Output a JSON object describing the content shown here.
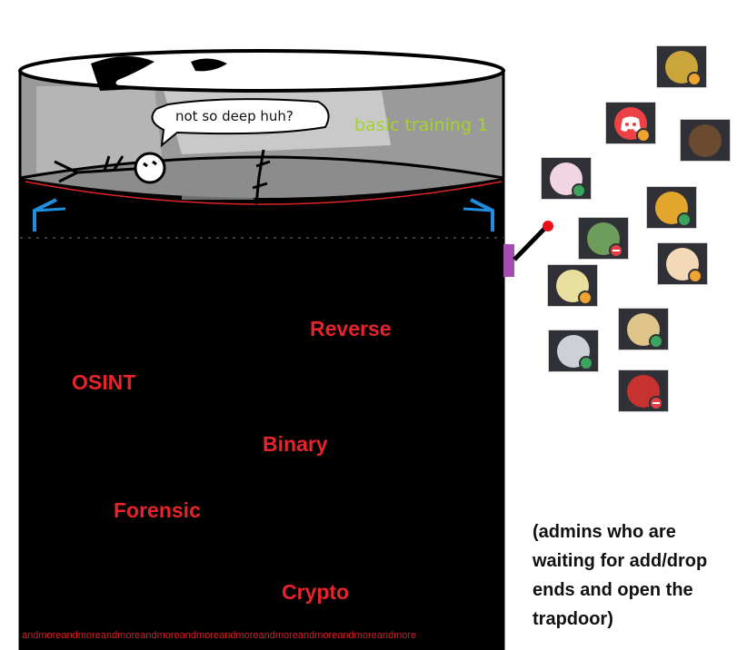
{
  "scene": {
    "speech_bubble": "not so deep huh?",
    "level_label": "basic training 1",
    "categories": {
      "reverse": "Reverse",
      "osint": "OSINT",
      "binary": "Binary",
      "forensic": "Forensic",
      "crypto": "Crypto"
    },
    "footer_text": "andmoreandmoreandmoreandmoreandmoreandmoreandmoreandmoreandmoreandmore",
    "admins_note": "(admins who are waiting for add/drop ends and open the trapdoor)"
  },
  "admins": [
    {
      "icon": "pepe-avatar-icon",
      "status": "idle",
      "color": "#c9a53a"
    },
    {
      "icon": "discord-logo-icon",
      "status": "idle",
      "color": "#ed4245"
    },
    {
      "icon": "soldier-avatar-icon",
      "status": "none",
      "color": "#6b4a32"
    },
    {
      "icon": "anime-girl-pink-avatar-icon",
      "status": "online",
      "color": "#f1d6e1"
    },
    {
      "icon": "burger-avatar-icon",
      "status": "online",
      "color": "#e3a62c"
    },
    {
      "icon": "green-map-avatar-icon",
      "status": "dnd",
      "color": "#6d9c5b"
    },
    {
      "icon": "anime-girl-blue-avatar-icon",
      "status": "idle",
      "color": "#f4d9b8"
    },
    {
      "icon": "anime-blonde-avatar-icon",
      "status": "idle",
      "color": "#e8df9e"
    },
    {
      "icon": "yellow-texture-avatar-icon",
      "status": "online",
      "color": "#e0c58a"
    },
    {
      "icon": "anime-dark-hair-avatar-icon",
      "status": "online",
      "color": "#cfcfd6"
    },
    {
      "icon": "red-object-avatar-icon",
      "status": "dnd",
      "color": "#c7312f"
    }
  ],
  "colors": {
    "category_text": "#e8232a",
    "level_text": "#a6d22a",
    "pit": "#000000",
    "trapdoor_edge": "#e0242a",
    "hinge": "#1e8fe0",
    "lever_base": "#a64bb0",
    "lever_knob": "#e8111a"
  }
}
